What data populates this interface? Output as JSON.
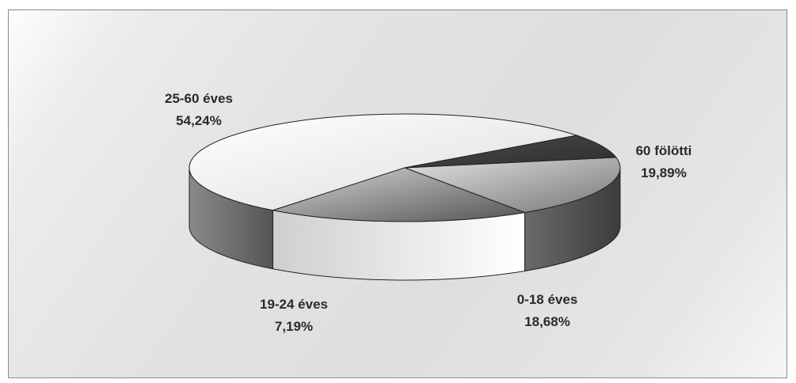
{
  "chart_data": {
    "type": "pie",
    "style": "3d",
    "title": "",
    "categories": [
      "25-60 éves",
      "60 fölötti",
      "0-18 éves",
      "19-24 éves"
    ],
    "values": [
      54.24,
      19.89,
      18.68,
      7.19
    ],
    "value_labels": [
      "54,24%",
      "19,89%",
      "18,68%",
      "7,19%"
    ],
    "colors": [
      "#efefef",
      "#5e5e5e",
      "#7a7a7a",
      "#3a3a3a"
    ],
    "legend": "none",
    "data_labels": "outside"
  }
}
